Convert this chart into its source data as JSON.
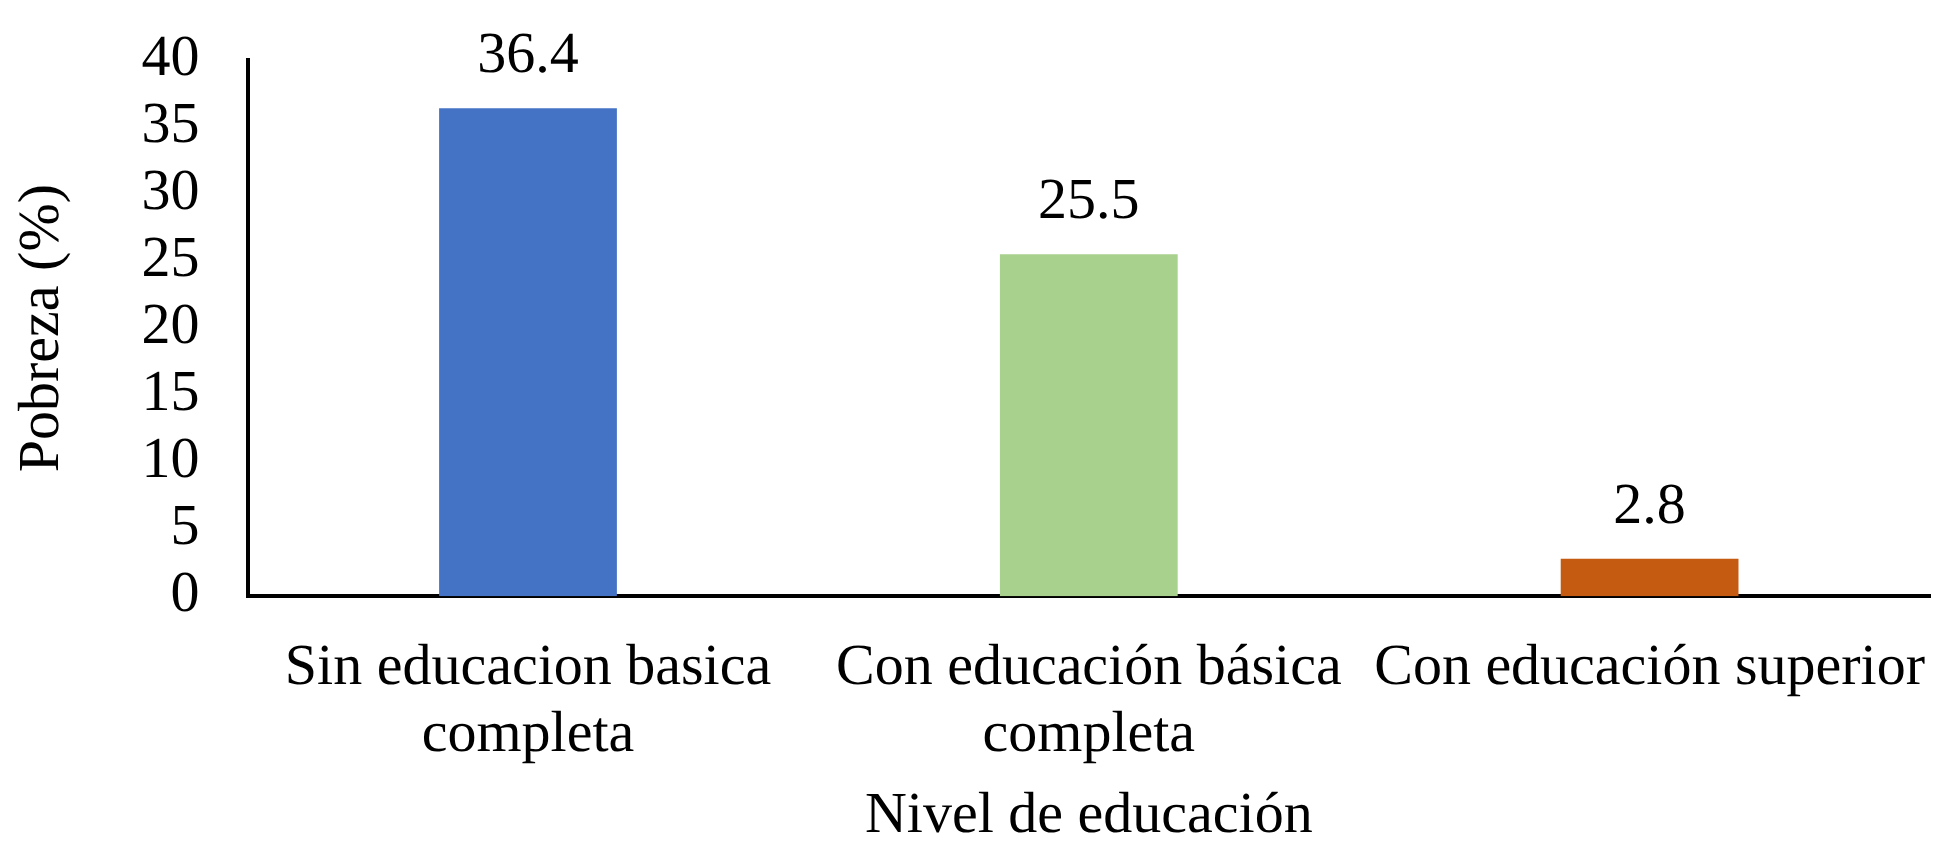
{
  "chart_data": {
    "type": "bar",
    "xlabel": "Nivel de educación",
    "ylabel": "Pobreza (%)",
    "categories": [
      "Sin educacion basica completa",
      "Con educación básica completa",
      "Con educación superior"
    ],
    "values": [
      36.4,
      25.5,
      2.8
    ],
    "colors": [
      "#4472c4",
      "#a9d18e",
      "#c55a11"
    ],
    "ylim": [
      0,
      40
    ],
    "yticks": [
      0,
      5,
      10,
      15,
      20,
      25,
      30,
      35,
      40
    ],
    "grid": false,
    "legend": false,
    "data_labels": true
  }
}
